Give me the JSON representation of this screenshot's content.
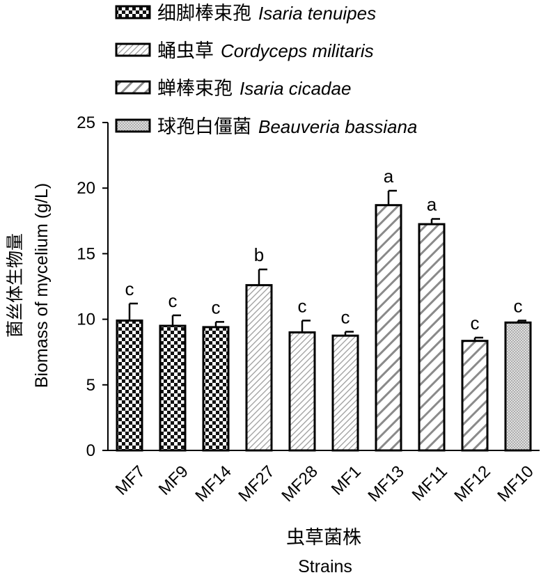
{
  "chart_data": {
    "type": "bar",
    "ylabel_cn": "菌丝体生物量",
    "ylabel": "Biomass of mycelium (g/L)",
    "xlabel_cn": "虫草菌株",
    "xlabel": "Strains",
    "ylim": [
      0,
      25
    ],
    "yticks": [
      0,
      5,
      10,
      15,
      20,
      25
    ],
    "grid": false,
    "legend_position": "top",
    "legend": [
      {
        "cn": "细脚棒束孢",
        "en": "Isaria tenuipes",
        "pattern": "checker"
      },
      {
        "cn": "蛹虫草",
        "en": "Cordyceps militaris",
        "pattern": "fine-diagonal"
      },
      {
        "cn": "蝉棒束孢",
        "en": "Isaria cicadae",
        "pattern": "wide-diagonal"
      },
      {
        "cn": "球孢白僵菌",
        "en": "Beauveria bassiana",
        "pattern": "dots"
      }
    ],
    "bars": [
      {
        "label": "MF7",
        "value": 9.9,
        "error": 1.3,
        "sig": "c",
        "group": 0
      },
      {
        "label": "MF9",
        "value": 9.5,
        "error": 0.8,
        "sig": "c",
        "group": 0
      },
      {
        "label": "MF14",
        "value": 9.4,
        "error": 0.4,
        "sig": "c",
        "group": 0
      },
      {
        "label": "MF27",
        "value": 12.6,
        "error": 1.2,
        "sig": "b",
        "group": 1
      },
      {
        "label": "MF28",
        "value": 9.0,
        "error": 0.9,
        "sig": "c",
        "group": 1
      },
      {
        "label": "MF1",
        "value": 8.75,
        "error": 0.3,
        "sig": "c",
        "group": 1
      },
      {
        "label": "MF13",
        "value": 18.7,
        "error": 1.1,
        "sig": "a",
        "group": 2
      },
      {
        "label": "MF11",
        "value": 17.25,
        "error": 0.4,
        "sig": "a",
        "group": 2
      },
      {
        "label": "MF12",
        "value": 8.35,
        "error": 0.25,
        "sig": "c",
        "group": 2
      },
      {
        "label": "MF10",
        "value": 9.75,
        "error": 0.15,
        "sig": "c",
        "group": 3
      }
    ]
  }
}
